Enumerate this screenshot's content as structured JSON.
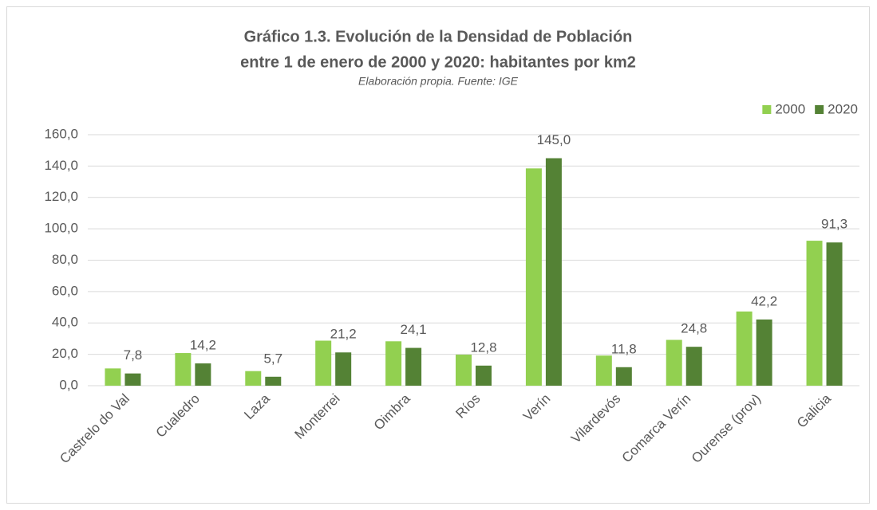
{
  "chart_data": {
    "type": "bar",
    "title": "Gráfico 1.3.  Evolución de la Densidad de Población",
    "subtitle": "entre 1 de enero de 2000 y 2020: habitantes por km2",
    "note": "Elaboración propia. Fuente: IGE",
    "categories": [
      "Castrelo do Val",
      "Cualedro",
      "Laza",
      "Monterrei",
      "Oimbra",
      "Ríos",
      "Verín",
      "Vilardevós",
      "Comarca Verín",
      "Ourense (prov)",
      "Galicia"
    ],
    "series": [
      {
        "name": "2000",
        "color": "#92d050",
        "values": [
          11.0,
          20.8,
          9.3,
          28.7,
          28.3,
          19.8,
          138.5,
          19.2,
          29.2,
          47.3,
          92.4
        ]
      },
      {
        "name": "2020",
        "color": "#548235",
        "values": [
          7.8,
          14.2,
          5.7,
          21.2,
          24.1,
          12.8,
          145.0,
          11.8,
          24.8,
          42.2,
          91.3
        ],
        "value_labels": [
          "7,8",
          "14,2",
          "5,7",
          "21,2",
          "24,1",
          "12,8",
          "145,0",
          "11,8",
          "24,8",
          "42,2",
          "91,3"
        ]
      }
    ],
    "ylim": [
      0,
      160
    ],
    "yticks": [
      {
        "value": 0,
        "label": "0,0"
      },
      {
        "value": 20,
        "label": "20,0"
      },
      {
        "value": 40,
        "label": "40,0"
      },
      {
        "value": 60,
        "label": "60,0"
      },
      {
        "value": 80,
        "label": "80,0"
      },
      {
        "value": 100,
        "label": "100,0"
      },
      {
        "value": 120,
        "label": "120,0"
      },
      {
        "value": 140,
        "label": "140,0"
      },
      {
        "value": 160,
        "label": "160,0"
      }
    ],
    "grid": true,
    "legend": "top-right"
  }
}
